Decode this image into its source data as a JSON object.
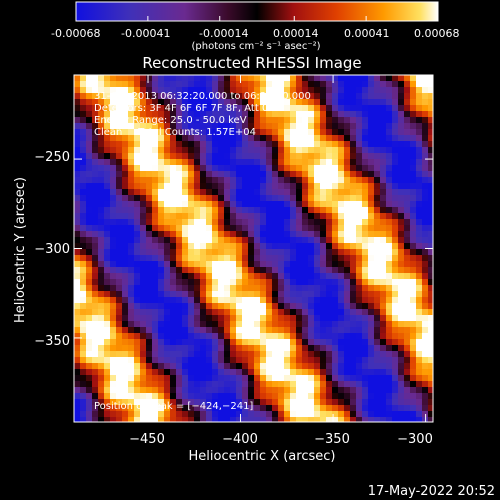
{
  "colorbar": {
    "tick_labels": [
      "-0.00068",
      "-0.00041",
      "-0.00014",
      "0.00014",
      "0.00041",
      "0.00068"
    ],
    "tick_values": [
      -0.00068,
      -0.00041,
      -0.00014,
      0.00014,
      0.00041,
      0.00068
    ],
    "range": [
      -0.00068,
      0.00068
    ],
    "unit_label": "(photons cm⁻² s⁻¹ asec⁻²)",
    "colors": [
      "#1010e0",
      "#5a3aa8",
      "#7a2a70",
      "#000000",
      "#a01010",
      "#e04000",
      "#ff9a00",
      "#ffe060",
      "#ffffff"
    ]
  },
  "chart_data": {
    "type": "heatmap",
    "title": "Reconstructed RHESSI Image",
    "xlabel": "Heliocentric X (arcsec)",
    "ylabel": "Heliocentric Y (arcsec)",
    "xlim": [
      -490,
      -296
    ],
    "ylim": [
      -397,
      -203
    ],
    "x_ticks": [
      -450,
      -400,
      -350,
      -300
    ],
    "x_tick_labels": [
      "−450",
      "−400",
      "−350",
      "−300"
    ],
    "y_ticks": [
      -350,
      -300,
      -250
    ],
    "y_tick_labels": [
      "−350",
      "−300",
      "−250"
    ],
    "annotations": [
      "31-Oct-2013 06:32:20.000 to 06:38:20.000",
      "Detectors: 3F 4F 6F 6F 7F 8F, Att 0",
      "Energy Range: 25.0 - 50.0 keV",
      "Clean     Total Counts: 1.57E+04"
    ],
    "peak_label": "Position of Peak = [−424,−241]",
    "peak": [
      -424,
      -241
    ],
    "pattern": "diagonal stripes of alternating positive/negative flux"
  },
  "footer": {
    "timestamp": "17-May-2022 20:52"
  }
}
